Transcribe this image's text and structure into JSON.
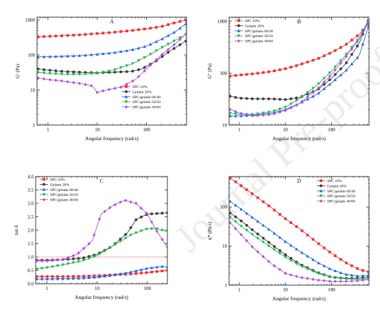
{
  "colors": {
    "SPC 10%": "#e8323a",
    "Gelatin 20%": "#3d3d3d",
    "SPC/gelatin 60/40": "#1f63e0",
    "SPC/gelatin 50/50": "#22b14c",
    "SPC/gelatin 40/60": "#b04fd6",
    "reference": "#e8323a"
  },
  "watermark": "Journal Pre-proof",
  "chart_data": [
    {
      "id": "A",
      "type": "line",
      "panel_letter": "A",
      "xlabel": "Angular frequency (rad/s)",
      "ylabel": "G' (Pa)",
      "x_scale": "log",
      "y_scale": "log",
      "xlim": [
        0.6,
        650
      ],
      "ylim": [
        1,
        1200
      ],
      "xticks": [
        1,
        10,
        100
      ],
      "xtick_labels": [
        "1",
        "10",
        "100"
      ],
      "yticks": [
        1,
        10,
        100,
        1000
      ],
      "ytick_labels": [
        "1",
        "10",
        "100",
        "1000"
      ],
      "legend_position": "lower-right",
      "series": [
        {
          "name": "SPC 10%",
          "marker": "square",
          "x": [
            0.63,
            1,
            2,
            5,
            10,
            20,
            50,
            100,
            200,
            400,
            630
          ],
          "y": [
            330,
            340,
            355,
            380,
            410,
            440,
            500,
            560,
            650,
            850,
            1000
          ]
        },
        {
          "name": "Gelatin 20%",
          "marker": "circle",
          "x": [
            0.63,
            1,
            2,
            5,
            10,
            20,
            50,
            80,
            150,
            300,
            630
          ],
          "y": [
            40,
            37,
            34,
            32,
            31,
            32,
            34,
            40,
            65,
            130,
            250
          ]
        },
        {
          "name": "SPC/gelatin 60/40",
          "marker": "triangle-up",
          "x": [
            0.63,
            1,
            2,
            5,
            10,
            20,
            50,
            100,
            200,
            400,
            630
          ],
          "y": [
            88,
            90,
            92,
            97,
            105,
            115,
            140,
            180,
            280,
            480,
            780
          ]
        },
        {
          "name": "SPC/gelatin 50/50",
          "marker": "triangle-down",
          "x": [
            0.63,
            1,
            2,
            5,
            10,
            20,
            50,
            100,
            200,
            400,
            630
          ],
          "y": [
            32,
            30,
            28,
            28,
            30,
            36,
            55,
            90,
            160,
            270,
            380
          ]
        },
        {
          "name": "SPC/gelatin 40/60",
          "marker": "diamond",
          "x": [
            0.63,
            1,
            2,
            5,
            8,
            10,
            15,
            30,
            60,
            100,
            200,
            400,
            630
          ],
          "y": [
            22,
            20,
            18,
            15,
            13,
            8.5,
            10,
            12,
            20,
            40,
            100,
            220,
            400
          ]
        }
      ]
    },
    {
      "id": "B",
      "type": "line",
      "panel_letter": "B",
      "xlabel": "Angular frequency (rad/s)",
      "ylabel": "G'' (Pa)",
      "x_scale": "log",
      "y_scale": "log",
      "xlim": [
        0.6,
        650
      ],
      "ylim": [
        10,
        1200
      ],
      "xticks": [
        1,
        10,
        100
      ],
      "xtick_labels": [
        "1",
        "10",
        "100"
      ],
      "yticks": [
        10,
        100,
        1000
      ],
      "ytick_labels": [
        "10",
        "100",
        "1000"
      ],
      "legend_position": "upper-left",
      "series": [
        {
          "name": "SPC 10%",
          "marker": "square",
          "x": [
            0.63,
            1,
            2,
            5,
            10,
            20,
            50,
            100,
            200,
            400,
            630
          ],
          "y": [
            88,
            92,
            97,
            108,
            122,
            145,
            190,
            250,
            350,
            560,
            900
          ]
        },
        {
          "name": "Gelatin 20%",
          "marker": "circle",
          "x": [
            0.63,
            1,
            2,
            5,
            10,
            20,
            50,
            100,
            200,
            400,
            630
          ],
          "y": [
            36,
            33,
            32,
            32,
            31,
            34,
            48,
            80,
            150,
            380,
            1050
          ]
        },
        {
          "name": "SPC/gelatin 60/40",
          "marker": "triangle-up",
          "x": [
            0.63,
            1,
            2,
            5,
            10,
            20,
            50,
            100,
            200,
            400,
            630
          ],
          "y": [
            15,
            15,
            15.5,
            17,
            20,
            26,
            40,
            65,
            110,
            220,
            800
          ]
        },
        {
          "name": "SPC/gelatin 50/50",
          "marker": "triangle-down",
          "x": [
            0.63,
            1,
            2,
            5,
            10,
            20,
            50,
            100,
            200,
            400,
            630
          ],
          "y": [
            17,
            16,
            16,
            18,
            22,
            32,
            60,
            110,
            220,
            480,
            1050
          ]
        },
        {
          "name": "SPC/gelatin 40/60",
          "marker": "diamond",
          "x": [
            0.63,
            1,
            2,
            5,
            10,
            20,
            50,
            100,
            200,
            400,
            630
          ],
          "y": [
            20,
            17,
            15,
            16,
            19,
            26,
            50,
            95,
            200,
            450,
            1000
          ]
        }
      ]
    },
    {
      "id": "C",
      "type": "line",
      "panel_letter": "C",
      "xlabel": "Angular frequency (rad/s)",
      "ylabel": "tan δ",
      "x_scale": "log",
      "y_scale": "linear",
      "xlim": [
        0.6,
        250
      ],
      "ylim": [
        0,
        4.0
      ],
      "xticks": [
        1,
        10,
        100
      ],
      "xtick_labels": [
        "1",
        "10",
        "100"
      ],
      "yticks": [
        0,
        0.5,
        1.0,
        1.5,
        2.0,
        2.5,
        3.0,
        3.5,
        4.0
      ],
      "ytick_labels": [
        "0.0",
        "0.5",
        "1.0",
        "1.5",
        "2.0",
        "2.5",
        "3.0",
        "3.5",
        "4.0"
      ],
      "reference_line_y": 1.0,
      "legend_position": "upper-left",
      "series": [
        {
          "name": "SPC 10%",
          "marker": "square",
          "x": [
            0.63,
            1,
            2,
            5,
            10,
            20,
            50,
            100,
            250
          ],
          "y": [
            0.27,
            0.27,
            0.27,
            0.28,
            0.3,
            0.33,
            0.37,
            0.42,
            0.5
          ]
        },
        {
          "name": "Gelatin 20%",
          "marker": "circle",
          "x": [
            0.63,
            1,
            2,
            5,
            10,
            20,
            40,
            60,
            100,
            150,
            250
          ],
          "y": [
            0.88,
            0.88,
            0.9,
            0.95,
            1.1,
            1.4,
            1.9,
            2.4,
            2.6,
            2.62,
            2.65
          ]
        },
        {
          "name": "SPC/gelatin 60/40",
          "marker": "triangle-up",
          "x": [
            0.63,
            1,
            2,
            5,
            10,
            20,
            50,
            100,
            200,
            250
          ],
          "y": [
            0.18,
            0.18,
            0.19,
            0.21,
            0.25,
            0.32,
            0.45,
            0.58,
            0.65,
            0.63
          ]
        },
        {
          "name": "SPC/gelatin 50/50",
          "marker": "triangle-down",
          "x": [
            0.63,
            1,
            2,
            5,
            10,
            20,
            50,
            100,
            150,
            250
          ],
          "y": [
            0.55,
            0.6,
            0.7,
            0.85,
            1.05,
            1.4,
            1.85,
            2.05,
            2.05,
            1.95
          ]
        },
        {
          "name": "SPC/gelatin 40/60",
          "marker": "diamond",
          "x": [
            0.63,
            1,
            2,
            4,
            8,
            12,
            20,
            35,
            60,
            100,
            150,
            250
          ],
          "y": [
            0.85,
            0.85,
            0.9,
            1.1,
            1.6,
            2.6,
            2.9,
            3.12,
            3.0,
            2.6,
            2.0,
            1.35
          ]
        }
      ]
    },
    {
      "id": "D",
      "type": "line",
      "panel_letter": "D",
      "xlabel": "Angular frequency (rad/s)",
      "ylabel": "η* (Pa.s)",
      "x_scale": "log",
      "y_scale": "log",
      "xlim": [
        0.6,
        650
      ],
      "ylim": [
        1,
        600
      ],
      "xticks": [
        1,
        10,
        100
      ],
      "xtick_labels": [
        "1",
        "10",
        "100"
      ],
      "yticks": [
        1,
        10,
        100
      ],
      "ytick_labels": [
        "1",
        "10",
        "100"
      ],
      "legend_position": "upper-right",
      "series": [
        {
          "name": "SPC 10%",
          "marker": "square",
          "x": [
            0.63,
            1,
            2,
            5,
            10,
            20,
            50,
            100,
            200,
            400,
            630
          ],
          "y": [
            550,
            380,
            210,
            95,
            50,
            28,
            12,
            6.5,
            3.8,
            2.5,
            2.2
          ]
        },
        {
          "name": "Gelatin 20%",
          "marker": "circle",
          "x": [
            0.63,
            1,
            2,
            5,
            10,
            20,
            50,
            100,
            200,
            400,
            630
          ],
          "y": [
            70,
            48,
            25,
            11,
            6,
            3.5,
            2.1,
            1.6,
            1.5,
            1.5,
            1.6
          ]
        },
        {
          "name": "SPC/gelatin 60/40",
          "marker": "triangle-up",
          "x": [
            0.63,
            1,
            2,
            5,
            10,
            20,
            50,
            100,
            200,
            400,
            630
          ],
          "y": [
            140,
            95,
            52,
            24,
            13,
            7.5,
            3.8,
            2.5,
            1.9,
            1.7,
            1.8
          ]
        },
        {
          "name": "SPC/gelatin 50/50",
          "marker": "triangle-down",
          "x": [
            0.63,
            1,
            2,
            5,
            10,
            20,
            50,
            100,
            200,
            400,
            630
          ],
          "y": [
            55,
            35,
            19,
            9,
            5.2,
            3.2,
            2.0,
            1.6,
            1.45,
            1.4,
            1.45
          ]
        },
        {
          "name": "SPC/gelatin 40/60",
          "marker": "diamond",
          "x": [
            0.63,
            1,
            2,
            5,
            10,
            20,
            50,
            100,
            200,
            400,
            630
          ],
          "y": [
            40,
            22,
            9,
            3.5,
            2.0,
            1.6,
            1.35,
            1.25,
            1.25,
            1.3,
            1.4
          ]
        }
      ]
    }
  ]
}
